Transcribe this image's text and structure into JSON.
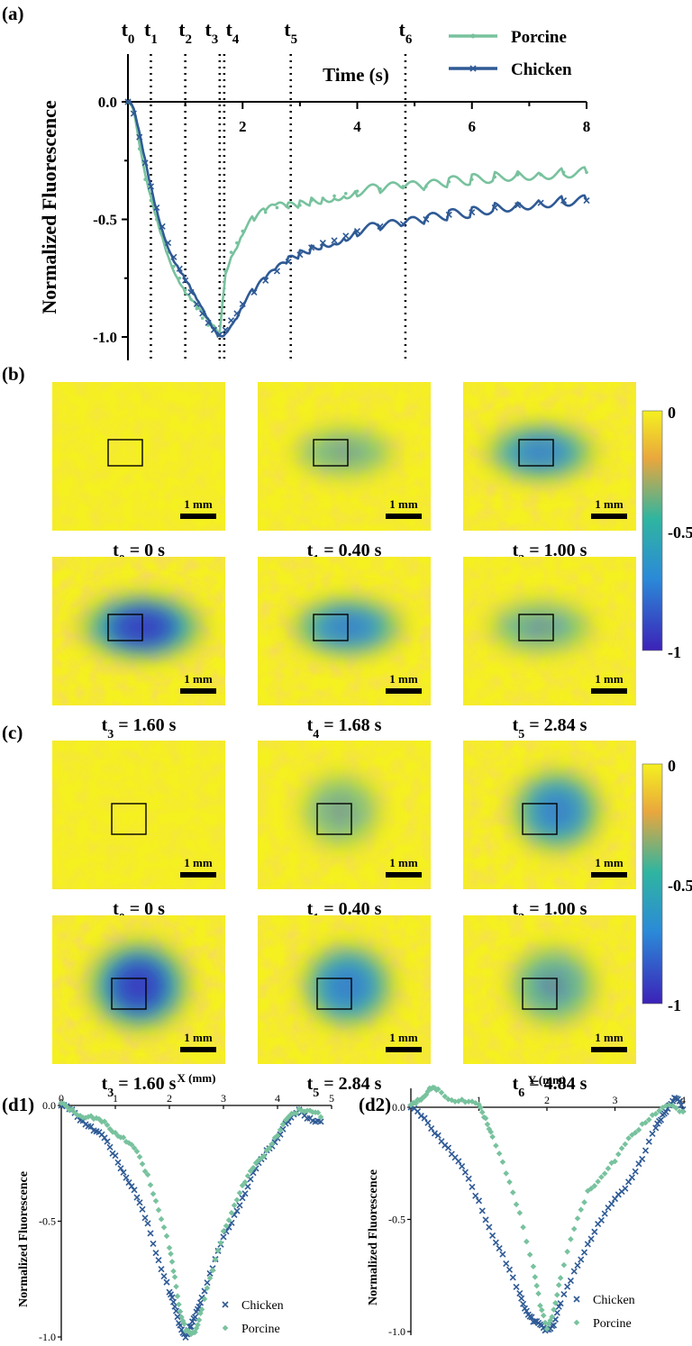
{
  "panel_labels": {
    "a": "(a)",
    "b": "(b)",
    "c": "(c)",
    "d1": "(d1)",
    "d2": "(d2)"
  },
  "colors": {
    "porcine": "#78c29e",
    "chicken": "#2f5a95",
    "ylorange": "#f5f020",
    "orange": "#e9a73d",
    "green": "#2fb5a0",
    "blue": "#2b8ad8",
    "indigo": "#3c22b8"
  },
  "colorbar": {
    "ticks": [
      "0",
      "-0.5",
      "-1"
    ]
  },
  "scale_bar_label": "1 mm",
  "panel_b": {
    "captions": [
      {
        "sym": "t",
        "sub": "0",
        "rest": " = 0 s"
      },
      {
        "sym": "t",
        "sub": "1",
        "rest": " = 0.40 s"
      },
      {
        "sym": "t",
        "sub": "2",
        "rest": " = 1.00 s"
      },
      {
        "sym": "t",
        "sub": "3",
        "rest": " = 1.60 s"
      },
      {
        "sym": "t",
        "sub": "4",
        "rest": " = 1.68 s"
      },
      {
        "sym": "t",
        "sub": "5",
        "rest": " = 2.84 s"
      }
    ],
    "intensity": [
      0.02,
      0.3,
      0.6,
      1.0,
      0.65,
      0.4
    ]
  },
  "panel_c": {
    "captions": [
      {
        "sym": "t",
        "sub": "0",
        "rest": " = 0 s"
      },
      {
        "sym": "t",
        "sub": "1",
        "rest": " = 0.40 s"
      },
      {
        "sym": "t",
        "sub": "2",
        "rest": " = 1.00 s"
      },
      {
        "sym": "t",
        "sub": "3",
        "rest": " = 1.60 s"
      },
      {
        "sym": "t",
        "sub": "5",
        "rest": " = 2.84 s"
      },
      {
        "sym": "t",
        "sub": "6",
        "rest": " = 4.84 s"
      }
    ],
    "intensity": [
      0.02,
      0.3,
      0.65,
      1.0,
      0.7,
      0.5
    ]
  },
  "chart_data": [
    {
      "id": "a",
      "type": "line",
      "xlabel": "Time (s)",
      "ylabel": "Normalized Fluorescence",
      "xlim": [
        0,
        8
      ],
      "ylim": [
        -1.1,
        0
      ],
      "xticks": [
        "2",
        "4",
        "6",
        "8"
      ],
      "yticks": [
        "0.0",
        "-0.5",
        "-1.0"
      ],
      "vlines": [
        {
          "sym": "t",
          "sub": "0",
          "x": 0.0
        },
        {
          "sym": "t",
          "sub": "1",
          "x": 0.4
        },
        {
          "sym": "t",
          "sub": "2",
          "x": 1.0
        },
        {
          "sym": "t",
          "sub": "3",
          "x": 1.6
        },
        {
          "sym": "t",
          "sub": "4",
          "x": 1.68
        },
        {
          "sym": "t",
          "sub": "5",
          "x": 2.84
        },
        {
          "sym": "t",
          "sub": "6",
          "x": 4.84
        }
      ],
      "legend_position": "top-right",
      "series": [
        {
          "name": "Porcine",
          "x": [
            0,
            0.1,
            0.2,
            0.3,
            0.4,
            0.5,
            0.6,
            0.7,
            0.8,
            0.9,
            1.0,
            1.1,
            1.2,
            1.3,
            1.4,
            1.5,
            1.6,
            1.65,
            1.7,
            1.8,
            1.9,
            2.0,
            2.2,
            2.4,
            2.6,
            2.8,
            3.0,
            3.2,
            3.4,
            3.6,
            3.8,
            4.0,
            4.4,
            4.8,
            5.2,
            5.6,
            6.0,
            6.4,
            6.8,
            7.2,
            7.6,
            8.0
          ],
          "y": [
            0,
            -0.05,
            -0.2,
            -0.33,
            -0.42,
            -0.5,
            -0.57,
            -0.64,
            -0.7,
            -0.75,
            -0.8,
            -0.84,
            -0.88,
            -0.92,
            -0.95,
            -0.97,
            -0.99,
            -0.85,
            -0.72,
            -0.64,
            -0.6,
            -0.55,
            -0.5,
            -0.47,
            -0.45,
            -0.45,
            -0.44,
            -0.42,
            -0.41,
            -0.4,
            -0.39,
            -0.38,
            -0.37,
            -0.36,
            -0.36,
            -0.34,
            -0.33,
            -0.32,
            -0.31,
            -0.31,
            -0.3,
            -0.3
          ]
        },
        {
          "name": "Chicken",
          "x": [
            0,
            0.1,
            0.2,
            0.3,
            0.4,
            0.5,
            0.6,
            0.7,
            0.8,
            0.9,
            1.0,
            1.1,
            1.2,
            1.3,
            1.4,
            1.5,
            1.6,
            1.7,
            1.8,
            1.9,
            2.0,
            2.2,
            2.4,
            2.6,
            2.8,
            3.0,
            3.2,
            3.4,
            3.6,
            3.8,
            4.0,
            4.4,
            4.8,
            5.2,
            5.6,
            6.0,
            6.4,
            6.8,
            7.2,
            7.6,
            8.0
          ],
          "y": [
            0,
            -0.05,
            -0.15,
            -0.26,
            -0.36,
            -0.45,
            -0.53,
            -0.6,
            -0.66,
            -0.71,
            -0.76,
            -0.81,
            -0.86,
            -0.9,
            -0.94,
            -0.97,
            -0.99,
            -0.97,
            -0.93,
            -0.9,
            -0.86,
            -0.81,
            -0.76,
            -0.72,
            -0.68,
            -0.65,
            -0.62,
            -0.6,
            -0.59,
            -0.57,
            -0.55,
            -0.53,
            -0.52,
            -0.5,
            -0.48,
            -0.47,
            -0.45,
            -0.44,
            -0.43,
            -0.42,
            -0.42
          ]
        }
      ]
    },
    {
      "id": "d1",
      "type": "scatter",
      "xlabel": "X (mm)",
      "ylabel": "Normalized Fluorescence",
      "xlim": [
        0,
        5
      ],
      "ylim": [
        -1.0,
        0
      ],
      "xticks": [
        "0",
        "1",
        "2",
        "3",
        "4",
        "5"
      ],
      "yticks": [
        "0.0",
        "-0.5",
        "-1.0"
      ],
      "legend_position": "bottom-right",
      "series": [
        {
          "name": "Chicken",
          "marker": "x",
          "x": [
            0.0,
            0.2,
            0.4,
            0.6,
            0.8,
            1.0,
            1.2,
            1.4,
            1.6,
            1.8,
            2.0,
            2.1,
            2.2,
            2.3,
            2.4,
            2.5,
            2.6,
            2.8,
            3.0,
            3.2,
            3.4,
            3.6,
            3.8,
            4.0,
            4.2,
            4.4,
            4.6,
            4.8
          ],
          "y": [
            0.0,
            -0.03,
            -0.06,
            -0.1,
            -0.15,
            -0.22,
            -0.3,
            -0.4,
            -0.52,
            -0.66,
            -0.8,
            -0.88,
            -0.95,
            -0.99,
            -0.96,
            -0.9,
            -0.82,
            -0.7,
            -0.58,
            -0.47,
            -0.37,
            -0.28,
            -0.2,
            -0.13,
            -0.07,
            -0.03,
            -0.05,
            -0.07
          ]
        },
        {
          "name": "Porcine",
          "marker": "diamond",
          "x": [
            0.0,
            0.2,
            0.4,
            0.6,
            0.8,
            1.0,
            1.2,
            1.4,
            1.6,
            1.8,
            2.0,
            2.1,
            2.2,
            2.3,
            2.4,
            2.5,
            2.6,
            2.8,
            3.0,
            3.2,
            3.4,
            3.6,
            3.8,
            4.0,
            4.2,
            4.4,
            4.6,
            4.8
          ],
          "y": [
            0.0,
            -0.02,
            -0.04,
            -0.06,
            -0.08,
            -0.11,
            -0.15,
            -0.21,
            -0.3,
            -0.44,
            -0.62,
            -0.75,
            -0.88,
            -0.97,
            -1.0,
            -0.96,
            -0.87,
            -0.72,
            -0.55,
            -0.42,
            -0.33,
            -0.26,
            -0.19,
            -0.12,
            -0.06,
            -0.02,
            -0.01,
            -0.05
          ]
        }
      ]
    },
    {
      "id": "d2",
      "type": "scatter",
      "xlabel": "Y (mm)",
      "ylabel": "Normalized Fluorescence",
      "xlim": [
        0,
        4
      ],
      "ylim": [
        -1.0,
        0
      ],
      "xticks": [
        "1",
        "2",
        "3",
        "4"
      ],
      "yticks": [
        "0.0",
        "-0.5",
        "-1.0"
      ],
      "legend_position": "bottom-right",
      "series": [
        {
          "name": "Chicken",
          "marker": "x",
          "x": [
            0.0,
            0.2,
            0.4,
            0.6,
            0.8,
            1.0,
            1.2,
            1.4,
            1.6,
            1.7,
            1.8,
            1.9,
            2.0,
            2.1,
            2.2,
            2.4,
            2.6,
            2.8,
            3.0,
            3.2,
            3.4,
            3.6,
            3.7,
            3.8,
            3.9,
            4.0
          ],
          "y": [
            0.0,
            -0.06,
            -0.12,
            -0.2,
            -0.3,
            -0.42,
            -0.56,
            -0.7,
            -0.84,
            -0.9,
            -0.95,
            -0.98,
            -0.99,
            -0.96,
            -0.88,
            -0.74,
            -0.6,
            -0.5,
            -0.42,
            -0.33,
            -0.22,
            -0.1,
            -0.04,
            0.02,
            0.04,
            -0.01
          ]
        },
        {
          "name": "Porcine",
          "marker": "diamond",
          "x": [
            0.0,
            0.1,
            0.2,
            0.3,
            0.4,
            0.6,
            0.8,
            1.0,
            1.1,
            1.2,
            1.4,
            1.6,
            1.8,
            1.9,
            2.0,
            2.1,
            2.2,
            2.4,
            2.6,
            2.8,
            3.0,
            3.2,
            3.4,
            3.6,
            3.8,
            4.0
          ],
          "y": [
            0.0,
            0.03,
            0.06,
            0.08,
            0.07,
            0.04,
            0.03,
            0.0,
            -0.05,
            -0.12,
            -0.3,
            -0.48,
            -0.7,
            -0.88,
            -1.0,
            -0.9,
            -0.75,
            -0.55,
            -0.38,
            -0.3,
            -0.24,
            -0.15,
            -0.07,
            -0.02,
            0.0,
            -0.02
          ]
        }
      ]
    }
  ]
}
